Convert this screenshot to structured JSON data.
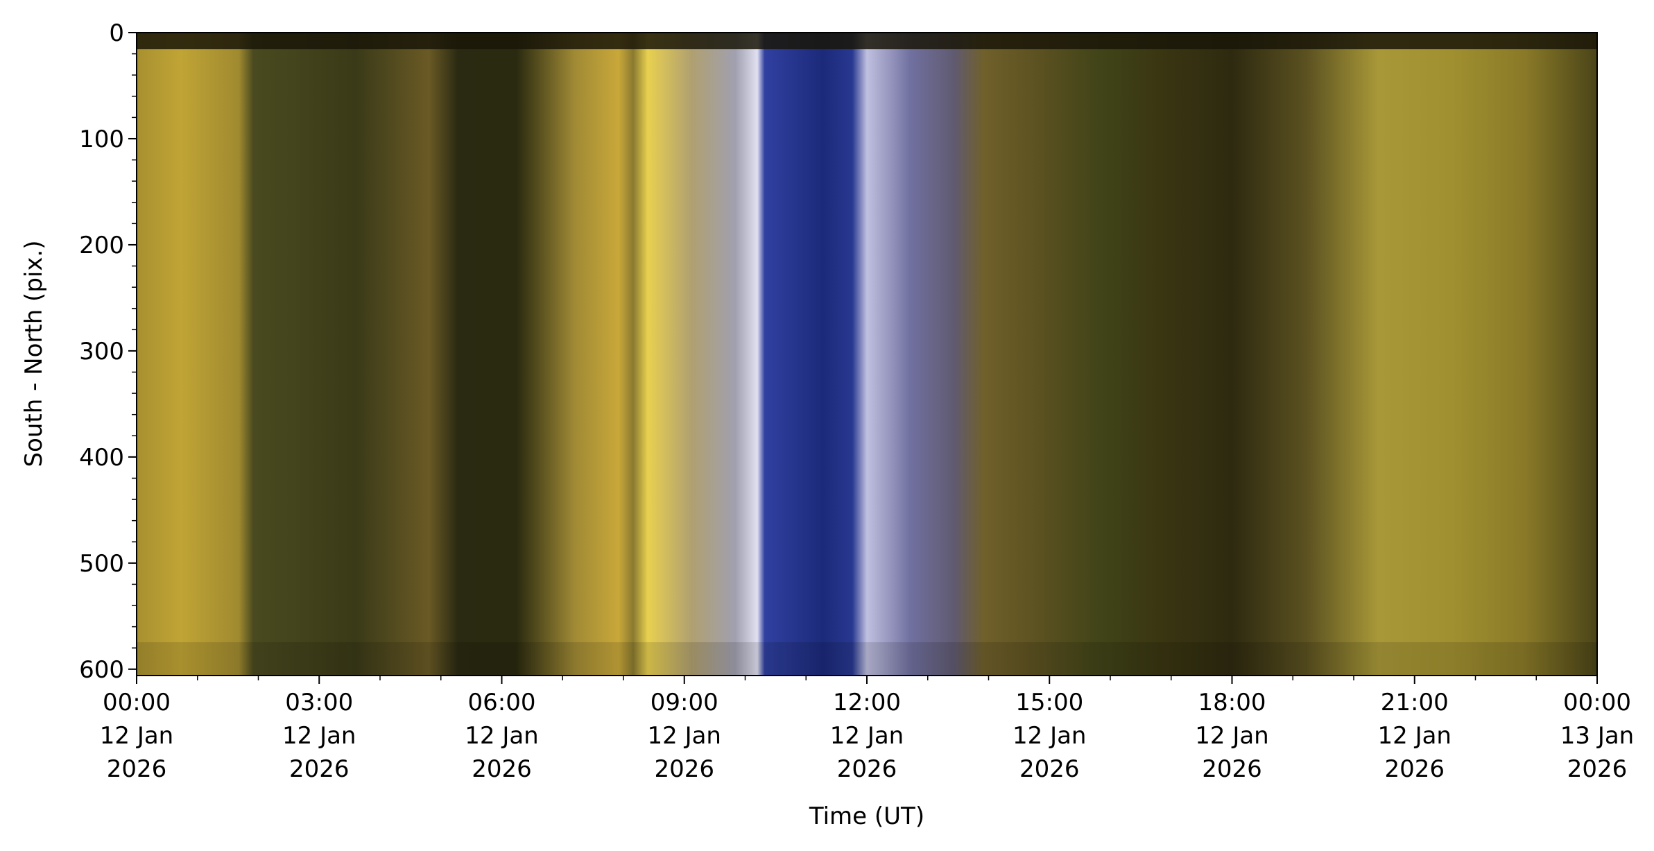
{
  "chart_data": {
    "type": "keogram",
    "xlabel": "Time (UT)",
    "ylabel": "South - North (pix.)",
    "xlim": [
      "2026-01-12T00:00",
      "2026-01-13T00:00"
    ],
    "xticks": [
      {
        "value": "2026-01-12T00:00",
        "label": "00:00\n12 Jan\n2026"
      },
      {
        "value": "2026-01-12T03:00",
        "label": "03:00\n12 Jan\n2026"
      },
      {
        "value": "2026-01-12T06:00",
        "label": "06:00\n12 Jan\n2026"
      },
      {
        "value": "2026-01-12T09:00",
        "label": "09:00\n12 Jan\n2026"
      },
      {
        "value": "2026-01-12T12:00",
        "label": "12:00\n12 Jan\n2026"
      },
      {
        "value": "2026-01-12T15:00",
        "label": "15:00\n12 Jan\n2026"
      },
      {
        "value": "2026-01-12T18:00",
        "label": "18:00\n12 Jan\n2026"
      },
      {
        "value": "2026-01-12T21:00",
        "label": "21:00\n12 Jan\n2026"
      },
      {
        "value": "2026-01-13T00:00",
        "label": "00:00\n13 Jan\n2026"
      }
    ],
    "ylim": [
      606,
      0
    ],
    "yticks": [
      0,
      100,
      200,
      300,
      400,
      500,
      600
    ]
  }
}
